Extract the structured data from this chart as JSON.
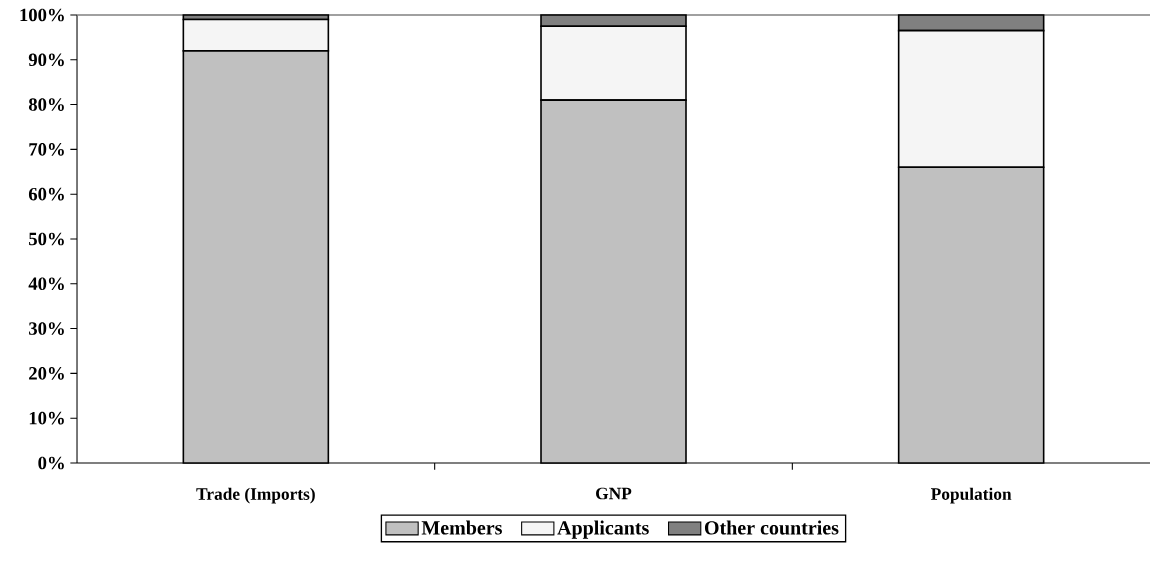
{
  "chart_data": {
    "type": "bar",
    "stacked": true,
    "categories": [
      "Trade (Imports)",
      "GNP",
      "Population"
    ],
    "series": [
      {
        "name": "Members",
        "color": "#c0c0c0",
        "values": [
          92,
          81,
          66
        ]
      },
      {
        "name": "Applicants",
        "color": "#f5f5f5",
        "values": [
          7,
          16.5,
          30.5
        ]
      },
      {
        "name": "Other countries",
        "color": "#808080",
        "values": [
          1,
          2.5,
          3.5
        ]
      }
    ],
    "ylim": [
      0,
      100
    ],
    "yticks": [
      {
        "value": 0,
        "label": "0%"
      },
      {
        "value": 10,
        "label": "10%"
      },
      {
        "value": 20,
        "label": "20%"
      },
      {
        "value": 30,
        "label": "30%"
      },
      {
        "value": 40,
        "label": "40%"
      },
      {
        "value": 50,
        "label": "50%"
      },
      {
        "value": 60,
        "label": "60%"
      },
      {
        "value": 70,
        "label": "70%"
      },
      {
        "value": 80,
        "label": "80%"
      },
      {
        "value": 90,
        "label": "90%"
      },
      {
        "value": 100,
        "label": "100%"
      }
    ],
    "grid": false,
    "legend": "bottom"
  }
}
